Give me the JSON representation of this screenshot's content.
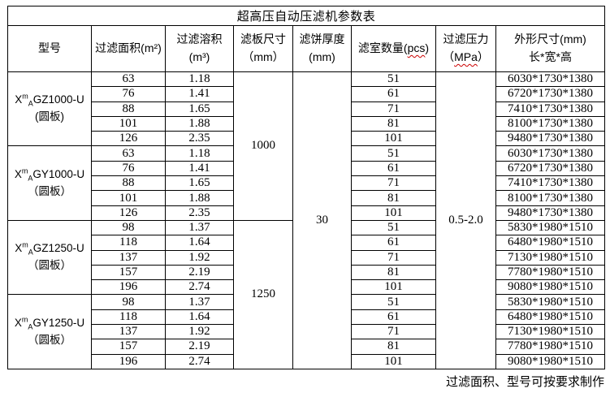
{
  "page": {
    "title": "超高压自动压滤机参数表",
    "footnote": "过滤面积、型号可按要求制作"
  },
  "header": {
    "model": "型号",
    "area": "过滤面积(m²)",
    "volume_line1": "过滤溶积",
    "volume_line2": "(m³)",
    "plate_line1": "滤板尺寸",
    "plate_line2": "（mm）",
    "cake_line1": "滤饼厚度",
    "cake_line2": "(mm)",
    "chambers_pre": "滤室数量(",
    "chambers_unit": "pcs",
    "chambers_post": ")",
    "pressure_line1": "过滤压力",
    "pressure_pre": "（",
    "pressure_unit": "MPa",
    "pressure_post": "）",
    "dims_line1": "外形尺寸(mm)",
    "dims_line2": "长*宽*高"
  },
  "table": {
    "cake_thickness": "30",
    "pressure_range": "0.5-2.0",
    "plate_sizes": [
      "1000",
      "1250"
    ],
    "border_color": "#000000",
    "spellcheck_underline_color": "#cc0000",
    "groups": [
      {
        "model_base": "X",
        "model_sup": "m",
        "model_sub": "A",
        "model_rest": "GZ1000-U",
        "variant": "(圆板)",
        "rows": [
          [
            "63",
            "1.18",
            "51",
            "6030*1730*1380"
          ],
          [
            "76",
            "1.41",
            "61",
            "6720*1730*1380"
          ],
          [
            "88",
            "1.65",
            "71",
            "7410*1730*1380"
          ],
          [
            "101",
            "1.88",
            "81",
            "8100*1730*1380"
          ],
          [
            "126",
            "2.35",
            "101",
            "9480*1730*1380"
          ]
        ]
      },
      {
        "model_base": "X",
        "model_sup": "m",
        "model_sub": "A",
        "model_rest": "GY1000-U",
        "variant": "（圆板）",
        "rows": [
          [
            "63",
            "1.18",
            "51",
            "6030*1730*1380"
          ],
          [
            "76",
            "1.41",
            "61",
            "6720*1730*1380"
          ],
          [
            "88",
            "1.65",
            "71",
            "7410*1730*1380"
          ],
          [
            "101",
            "1.88",
            "81",
            "8100*1730*1380"
          ],
          [
            "126",
            "2.35",
            "101",
            "9480*1730*1380"
          ]
        ]
      },
      {
        "model_base": "X",
        "model_sup": "m",
        "model_sub": "A",
        "model_rest": "GZ1250-U",
        "variant": "（圆板）",
        "rows": [
          [
            "98",
            "1.37",
            "51",
            "5830*1980*1510"
          ],
          [
            "118",
            "1.64",
            "61",
            "6480*1980*1510"
          ],
          [
            "137",
            "1.92",
            "71",
            "7130*1980*1510"
          ],
          [
            "157",
            "2.19",
            "81",
            "7780*1980*1510"
          ],
          [
            "196",
            "2.74",
            "101",
            "9080*1980*1510"
          ]
        ]
      },
      {
        "model_base": "X",
        "model_sup": "m",
        "model_sub": "A",
        "model_rest": "GY1250-U",
        "variant": "（圆板）",
        "rows": [
          [
            "98",
            "1.37",
            "51",
            "5830*1980*1510"
          ],
          [
            "118",
            "1.64",
            "61",
            "6480*1980*1510"
          ],
          [
            "137",
            "1.92",
            "71",
            "7130*1980*1510"
          ],
          [
            "157",
            "2.19",
            "81",
            "7780*1980*1510"
          ],
          [
            "196",
            "2.74",
            "101",
            "9080*1980*1510"
          ]
        ]
      }
    ]
  }
}
